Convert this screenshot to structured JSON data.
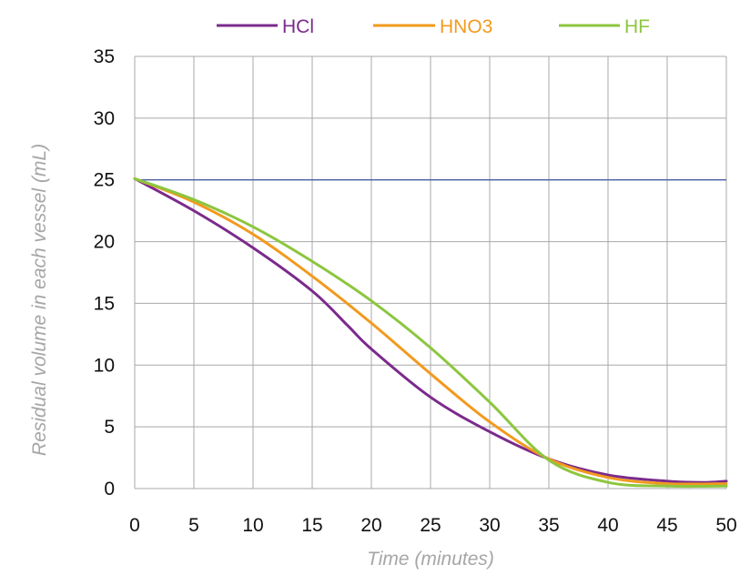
{
  "chart_data": {
    "type": "line",
    "title": "",
    "xlabel": "Time (minutes)",
    "ylabel": "Residual volume in each vessel (mL)",
    "xlim": [
      0,
      50
    ],
    "ylim": [
      0,
      35
    ],
    "xticks": [
      0,
      5,
      10,
      15,
      20,
      25,
      30,
      35,
      40,
      45,
      50
    ],
    "yticks": [
      0,
      5,
      10,
      15,
      20,
      25,
      30,
      35
    ],
    "grid": true,
    "legend_position": "top",
    "reference_line": {
      "y": 25,
      "color": "#4a5fa8"
    },
    "series": [
      {
        "name": "HCl",
        "color": "#7b2a8c",
        "x": [
          0,
          5,
          10,
          15,
          18,
          20,
          25,
          30,
          35,
          40,
          45,
          48,
          50
        ],
        "y": [
          25.1,
          22.5,
          19.5,
          16.0,
          13.2,
          11.3,
          7.4,
          4.6,
          2.4,
          1.1,
          0.6,
          0.5,
          0.6
        ]
      },
      {
        "name": "HNO3",
        "color": "#f29a1e",
        "x": [
          0,
          5,
          10,
          15,
          20,
          25,
          30,
          35,
          40,
          45,
          50
        ],
        "y": [
          25.1,
          23.2,
          20.6,
          17.2,
          13.4,
          9.3,
          5.4,
          2.4,
          0.9,
          0.4,
          0.4
        ]
      },
      {
        "name": "HF",
        "color": "#8cc63f",
        "x": [
          0,
          5,
          10,
          15,
          20,
          25,
          30,
          35,
          40,
          45,
          50
        ],
        "y": [
          25.1,
          23.4,
          21.2,
          18.4,
          15.2,
          11.4,
          7.0,
          2.3,
          0.5,
          0.2,
          0.2
        ]
      }
    ]
  }
}
